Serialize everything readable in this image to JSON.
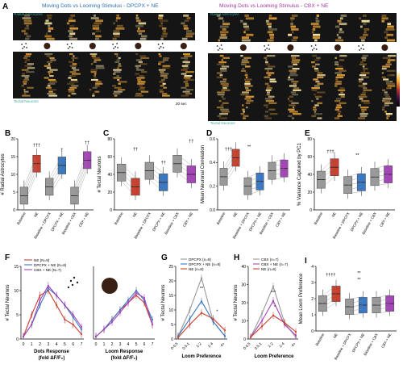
{
  "panelA": {
    "letter": "A",
    "left": {
      "title": "Moving Dots vs Looming Stimulus - DPCPX + NE",
      "top_label": "Radial Astrocytes",
      "bottom_label": "Tectal Neurons",
      "scalebar": "20 sec"
    },
    "right": {
      "title": "Moving Dots vs Looming Stimulus - CBX + NE",
      "top_label": "Radial Astrocytes",
      "bottom_label": "Tectal Neurons",
      "colorbar_ticks": [
        "100%",
        "80%",
        "60%",
        "40%",
        "20%",
        "0%"
      ]
    },
    "colors": {
      "left_title": "#2d6fb3",
      "right_title": "#a23aa0"
    }
  },
  "panels": {
    "B": {
      "letter": "B",
      "ylabel": "# Radial Astrocytes",
      "yticks": [
        "0",
        "5",
        "10",
        "15",
        "20"
      ],
      "xlabels": [
        "Baseline",
        "NE",
        "Baseline + DPCPX",
        "DPCPX + NE",
        "Baseline + CBX",
        "CBX + NE"
      ],
      "sig": [
        "†††",
        "†",
        "††"
      ]
    },
    "C": {
      "letter": "C",
      "ylabel": "# Tectal Neurons",
      "yticks": [
        "0",
        "20",
        "40",
        "60",
        "80"
      ],
      "xlabels": [
        "Baseline",
        "NE",
        "Baseline + DPCPX",
        "DPCPX + NE",
        "Baseline + CBX",
        "CBX + NE"
      ],
      "sig": [
        "††",
        "††",
        "††"
      ]
    },
    "D": {
      "letter": "D",
      "ylabel": "Mean Neuronal Correlation",
      "yticks": [
        "0.0",
        "0.2",
        "0.4",
        "0.6"
      ],
      "xlabels": [
        "Baseline",
        "NE",
        "Baseline + DPCPX",
        "DPCPX + NE",
        "Baseline + CBX",
        "CBX + NE"
      ],
      "sig": [
        "†††",
        "**"
      ]
    },
    "E": {
      "letter": "E",
      "ylabel": "% Variance Captured by PC1",
      "yticks": [
        "0",
        "20",
        "40",
        "60",
        "80"
      ],
      "xlabels": [
        "Baseline",
        "NE",
        "Baseline + DPCPX",
        "DPCPX + NE",
        "Baseline + CBX",
        "CBX + NE"
      ],
      "sig": [
        "†††",
        "**"
      ]
    },
    "F": {
      "letter": "F",
      "ylabel": "# Tectal Neurons",
      "yticks": [
        "0",
        "5",
        "10",
        "15"
      ],
      "xticks": [
        "0",
        "1",
        "2",
        "3",
        "4",
        "5",
        "6",
        "7"
      ],
      "xlabel1_left": "Dots Response",
      "xlabel2_left": "(fold ΔF/F₀)",
      "xlabel1_right": "Loom Response",
      "xlabel2_right": "(fold ΔF/F₀)",
      "legend": [
        "NE (N=8)",
        "DPCPX + NE (N=8)",
        "CBX + NE (N=7)"
      ]
    },
    "G": {
      "letter": "G",
      "ylabel": "# Tectal Neurons",
      "yticks": [
        "0",
        "5",
        "10",
        "15",
        "20",
        "25"
      ],
      "xticks": [
        "0-0.5",
        "0.5-1",
        "1-2",
        "2-4",
        "4+"
      ],
      "xlabel": "Loom Preference",
      "legend": [
        "DPCPX (n=8)",
        "DPCPX + NE (n=8)",
        "NE (n=8)"
      ],
      "sig": [
        "**",
        "*"
      ]
    },
    "H": {
      "letter": "H",
      "ylabel": "# Tectal Neurons",
      "yticks": [
        "0",
        "10",
        "20",
        "30",
        "40"
      ],
      "xticks": [
        "0-0.5",
        "0.5-1",
        "1-2",
        "2-4",
        "4+"
      ],
      "xlabel": "Loom Preference",
      "legend": [
        "CBX (n=7)",
        "CBX + NE (n=7)",
        "NE (n=8)"
      ],
      "sig": [
        "***",
        "*"
      ]
    },
    "I": {
      "letter": "I",
      "ylabel": "Mean Loom Preference",
      "yticks": [
        "0",
        "1",
        "2",
        "3",
        "4"
      ],
      "xlabels": [
        "Baseline",
        "NE",
        "Baseline + DPCPX",
        "DPCPX + NE",
        "Baseline + CBX",
        "CBX + NE"
      ],
      "sig": [
        "††††",
        "**",
        "**"
      ]
    }
  },
  "colors": {
    "grey": "#9a9a9a",
    "red": "#c8402f",
    "blue": "#3a78c2",
    "purple": "#a445b8",
    "teal": "#3aa6a0"
  },
  "chart_data": [
    {
      "panel": "B",
      "type": "bar",
      "categories": [
        "Baseline",
        "NE",
        "Baseline + DPCPX",
        "DPCPX + NE",
        "Baseline + CBX",
        "CBX + NE"
      ],
      "values": [
        4,
        13,
        6.5,
        12.5,
        4,
        14
      ],
      "ylim": [
        0,
        20
      ]
    },
    {
      "panel": "C",
      "type": "bar",
      "categories": [
        "Baseline",
        "NE",
        "Baseline + DPCPX",
        "DPCPX + NE",
        "Baseline + CBX",
        "CBX + NE"
      ],
      "values": [
        42,
        26,
        44,
        31,
        52,
        40
      ],
      "ylim": [
        0,
        80
      ]
    },
    {
      "panel": "D",
      "type": "bar",
      "categories": [
        "Baseline",
        "NE",
        "Baseline + DPCPX",
        "DPCPX + NE",
        "Baseline + CBX",
        "CBX + NE"
      ],
      "values": [
        0.28,
        0.44,
        0.2,
        0.24,
        0.33,
        0.35
      ],
      "ylim": [
        0,
        0.6
      ]
    },
    {
      "panel": "E",
      "type": "bar",
      "categories": [
        "Baseline",
        "NE",
        "Baseline + DPCPX",
        "DPCPX + NE",
        "Baseline + CBX",
        "CBX + NE"
      ],
      "values": [
        34,
        48,
        28,
        31,
        37,
        40
      ],
      "ylim": [
        0,
        80
      ]
    },
    {
      "panel": "F",
      "type": "line",
      "x": [
        0,
        1,
        2,
        3,
        4,
        5,
        6,
        7
      ],
      "series": [
        {
          "name": "NE (N=8)",
          "values": [
            0.5,
            5,
            9,
            10,
            7,
            4,
            3,
            1
          ]
        },
        {
          "name": "DPCPX + NE (N=8)",
          "values": [
            0.5,
            3,
            7,
            10.5,
            9,
            7,
            4.5,
            2
          ]
        },
        {
          "name": "CBX + NE (N=7)",
          "values": [
            0.5,
            3,
            8,
            11,
            9,
            7,
            5,
            2.5
          ]
        }
      ],
      "ylim": [
        0,
        15
      ]
    },
    {
      "panel": "F2",
      "type": "line",
      "x": [
        0,
        1,
        2,
        3,
        4,
        5,
        6,
        7
      ],
      "series": [
        {
          "name": "NE (N=8)",
          "values": [
            0.5,
            2,
            4,
            6,
            7.5,
            9,
            7.5,
            3
          ]
        },
        {
          "name": "DPCPX + NE (N=8)",
          "values": [
            0.5,
            2,
            4,
            6,
            8,
            10,
            8,
            4
          ]
        },
        {
          "name": "CBX + NE (N=7)",
          "values": [
            0.5,
            2,
            3.5,
            5.5,
            7.5,
            9.5,
            8.5,
            3
          ]
        }
      ],
      "ylim": [
        0,
        15
      ]
    },
    {
      "panel": "G",
      "type": "line",
      "categories": [
        "0-0.5",
        "0.5-1",
        "1-2",
        "2-4",
        "4+"
      ],
      "series": [
        {
          "name": "DPCPX (n=8)",
          "values": [
            1,
            10,
            21,
            6,
            1
          ]
        },
        {
          "name": "DPCPX + NE (n=8)",
          "values": [
            1,
            7,
            13,
            6,
            1
          ]
        },
        {
          "name": "NE (n=8)",
          "values": [
            0.5,
            5,
            9,
            7,
            3
          ]
        }
      ],
      "ylim": [
        0,
        25
      ]
    },
    {
      "panel": "H",
      "type": "line",
      "categories": [
        "0-0.5",
        "0.5-1",
        "1-2",
        "2-4",
        "4+"
      ],
      "series": [
        {
          "name": "CBX (n=7)",
          "values": [
            1,
            14,
            29,
            9,
            1
          ]
        },
        {
          "name": "CBX + NE (n=7)",
          "values": [
            1,
            10,
            21,
            8,
            2
          ]
        },
        {
          "name": "NE (n=8)",
          "values": [
            1,
            7,
            13,
            9,
            4
          ]
        }
      ],
      "ylim": [
        0,
        40
      ]
    },
    {
      "panel": "I",
      "type": "bar",
      "categories": [
        "Baseline",
        "NE",
        "Baseline + DPCPX",
        "DPCPX + NE",
        "Baseline + CBX",
        "CBX + NE"
      ],
      "values": [
        1.7,
        2.3,
        1.5,
        1.6,
        1.6,
        1.7
      ],
      "ylim": [
        0,
        4
      ]
    }
  ]
}
